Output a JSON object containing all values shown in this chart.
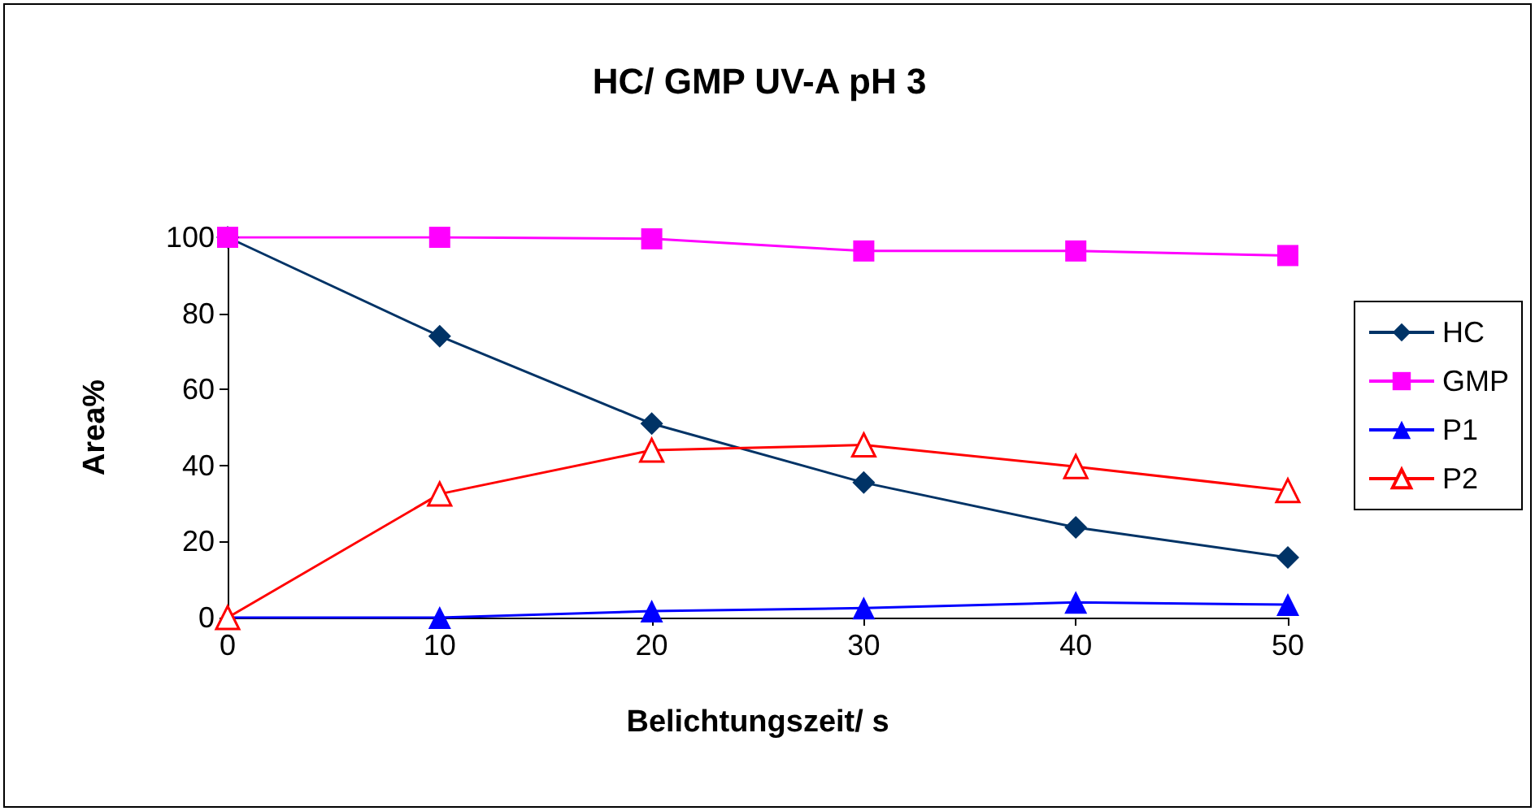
{
  "chart_data": {
    "type": "line",
    "title": "HC/ GMP UV-A pH 3",
    "xlabel": "Belichtungszeit/ s",
    "ylabel": "Area%",
    "x": [
      0,
      10,
      20,
      30,
      40,
      50
    ],
    "xlim": [
      0,
      50
    ],
    "xticks": [
      0,
      10,
      20,
      30,
      40,
      50
    ],
    "ylim": [
      0,
      100
    ],
    "yticks": [
      0,
      20,
      40,
      60,
      80,
      100
    ],
    "grid": false,
    "legend": "right",
    "series": [
      {
        "name": "HC",
        "color": "#003366",
        "marker": "diamond",
        "values": [
          100,
          74,
          51,
          35.5,
          23.7,
          15.8
        ]
      },
      {
        "name": "GMP",
        "color": "#ff00ff",
        "marker": "square",
        "values": [
          100,
          100,
          99.6,
          96.4,
          96.4,
          95.2
        ]
      },
      {
        "name": "P1",
        "color": "#0000ff",
        "marker": "triangle",
        "values": [
          0,
          0,
          1.7,
          2.5,
          4,
          3.4
        ]
      },
      {
        "name": "P2",
        "color": "#ff0000",
        "marker": "triangle-open",
        "values": [
          0,
          32.5,
          44,
          45.4,
          39.7,
          33.4
        ]
      }
    ]
  }
}
